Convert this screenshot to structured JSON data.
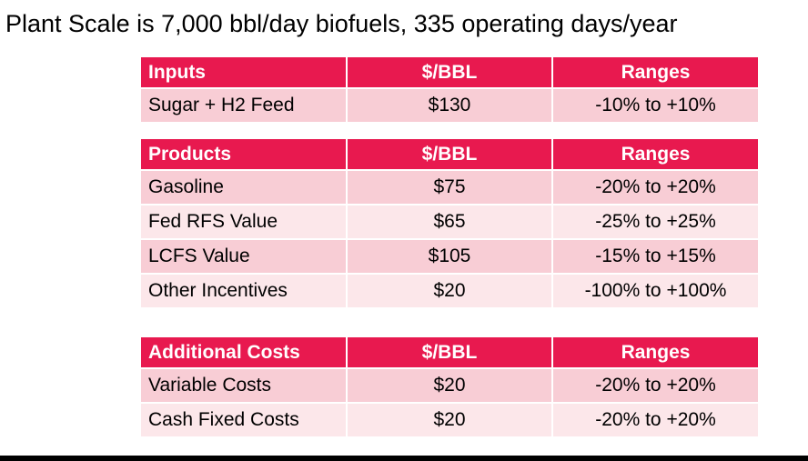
{
  "title": "Plant Scale is 7,000 bbl/day biofuels, 335 operating days/year",
  "tables": [
    {
      "header": [
        "Inputs",
        "$/BBL",
        "Ranges"
      ],
      "rows": [
        [
          "Sugar + H2 Feed",
          "$130",
          "-10% to +10%"
        ]
      ]
    },
    {
      "header": [
        "Products",
        "$/BBL",
        "Ranges"
      ],
      "rows": [
        [
          "Gasoline",
          "$75",
          "-20% to +20%"
        ],
        [
          "Fed RFS Value",
          "$65",
          "-25% to +25%"
        ],
        [
          "LCFS Value",
          "$105",
          "-15% to +15%"
        ],
        [
          "Other Incentives",
          "$20",
          "-100% to +100%"
        ]
      ]
    },
    {
      "header": [
        "Additional Costs",
        "$/BBL",
        "Ranges"
      ],
      "rows": [
        [
          "Variable Costs",
          "$20",
          "-20% to +20%"
        ],
        [
          "Cash Fixed Costs",
          "$20",
          "-20% to +20%"
        ]
      ]
    }
  ],
  "colors": {
    "header_bg": "#e8194f",
    "row_odd": "#f8cdd5",
    "row_even": "#fce7ea"
  }
}
